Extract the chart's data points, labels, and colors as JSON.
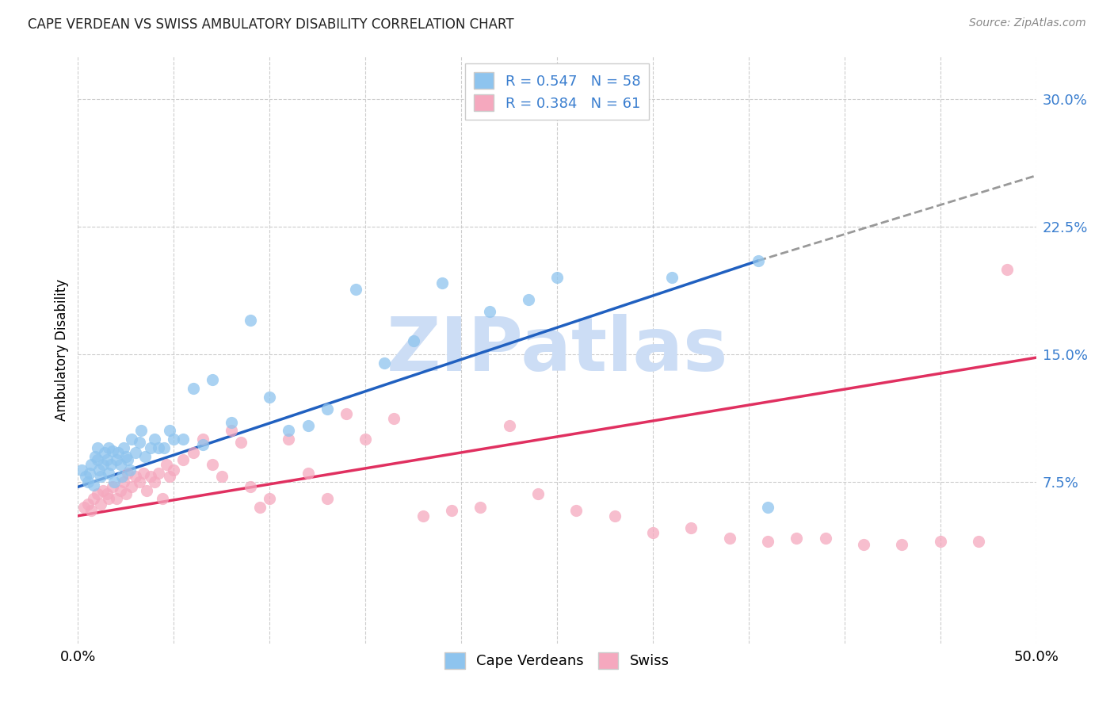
{
  "title": "CAPE VERDEAN VS SWISS AMBULATORY DISABILITY CORRELATION CHART",
  "source": "Source: ZipAtlas.com",
  "ylabel": "Ambulatory Disability",
  "xlim": [
    0.0,
    0.5
  ],
  "ylim": [
    -0.02,
    0.325
  ],
  "yticks_right": [
    0.075,
    0.15,
    0.225,
    0.3
  ],
  "ytick_right_labels": [
    "7.5%",
    "15.0%",
    "22.5%",
    "30.0%"
  ],
  "cv_R": 0.547,
  "cv_N": 58,
  "sw_R": 0.384,
  "sw_N": 61,
  "cv_color": "#8EC4EE",
  "sw_color": "#F5A8BE",
  "trendline_cv_color": "#2060C0",
  "trendline_sw_color": "#E03060",
  "trendline_dashed_color": "#999999",
  "background_color": "#ffffff",
  "grid_color": "#cccccc",
  "watermark": "ZIPatlas",
  "watermark_color": "#ccddf5",
  "legend_text_color": "#3a7ecf",
  "cv_trendline_x0": 0.0,
  "cv_trendline_y0": 0.072,
  "cv_trendline_x1": 0.355,
  "cv_trendline_y1": 0.205,
  "cv_trendline_dash_x1": 0.5,
  "cv_trendline_dash_y1": 0.255,
  "sw_trendline_x0": 0.0,
  "sw_trendline_y0": 0.055,
  "sw_trendline_x1": 0.5,
  "sw_trendline_y1": 0.148,
  "cv_x": [
    0.002,
    0.004,
    0.005,
    0.006,
    0.007,
    0.008,
    0.009,
    0.01,
    0.01,
    0.011,
    0.012,
    0.013,
    0.014,
    0.015,
    0.016,
    0.016,
    0.017,
    0.018,
    0.019,
    0.02,
    0.021,
    0.022,
    0.023,
    0.024,
    0.025,
    0.026,
    0.027,
    0.028,
    0.03,
    0.032,
    0.033,
    0.035,
    0.038,
    0.04,
    0.042,
    0.045,
    0.048,
    0.05,
    0.055,
    0.06,
    0.065,
    0.07,
    0.08,
    0.09,
    0.1,
    0.11,
    0.12,
    0.13,
    0.145,
    0.16,
    0.175,
    0.19,
    0.215,
    0.235,
    0.25,
    0.31,
    0.355,
    0.36
  ],
  "cv_y": [
    0.082,
    0.078,
    0.075,
    0.08,
    0.085,
    0.073,
    0.09,
    0.088,
    0.095,
    0.082,
    0.078,
    0.085,
    0.092,
    0.088,
    0.08,
    0.095,
    0.085,
    0.093,
    0.075,
    0.088,
    0.092,
    0.085,
    0.078,
    0.095,
    0.09,
    0.088,
    0.082,
    0.1,
    0.092,
    0.098,
    0.105,
    0.09,
    0.095,
    0.1,
    0.095,
    0.095,
    0.105,
    0.1,
    0.1,
    0.13,
    0.097,
    0.135,
    0.11,
    0.17,
    0.125,
    0.105,
    0.108,
    0.118,
    0.188,
    0.145,
    0.158,
    0.192,
    0.175,
    0.182,
    0.195,
    0.195,
    0.205,
    0.06
  ],
  "sw_x": [
    0.003,
    0.005,
    0.007,
    0.008,
    0.01,
    0.012,
    0.013,
    0.015,
    0.016,
    0.018,
    0.02,
    0.022,
    0.024,
    0.025,
    0.026,
    0.028,
    0.03,
    0.032,
    0.034,
    0.036,
    0.038,
    0.04,
    0.042,
    0.044,
    0.046,
    0.048,
    0.05,
    0.055,
    0.06,
    0.065,
    0.07,
    0.075,
    0.08,
    0.085,
    0.09,
    0.095,
    0.1,
    0.11,
    0.12,
    0.13,
    0.14,
    0.15,
    0.165,
    0.18,
    0.195,
    0.21,
    0.225,
    0.24,
    0.26,
    0.28,
    0.3,
    0.32,
    0.34,
    0.36,
    0.375,
    0.39,
    0.41,
    0.43,
    0.45,
    0.47,
    0.485
  ],
  "sw_y": [
    0.06,
    0.062,
    0.058,
    0.065,
    0.068,
    0.062,
    0.07,
    0.068,
    0.065,
    0.072,
    0.065,
    0.07,
    0.075,
    0.068,
    0.08,
    0.072,
    0.078,
    0.075,
    0.08,
    0.07,
    0.078,
    0.075,
    0.08,
    0.065,
    0.085,
    0.078,
    0.082,
    0.088,
    0.092,
    0.1,
    0.085,
    0.078,
    0.105,
    0.098,
    0.072,
    0.06,
    0.065,
    0.1,
    0.08,
    0.065,
    0.115,
    0.1,
    0.112,
    0.055,
    0.058,
    0.06,
    0.108,
    0.068,
    0.058,
    0.055,
    0.045,
    0.048,
    0.042,
    0.04,
    0.042,
    0.042,
    0.038,
    0.038,
    0.04,
    0.04,
    0.2
  ]
}
